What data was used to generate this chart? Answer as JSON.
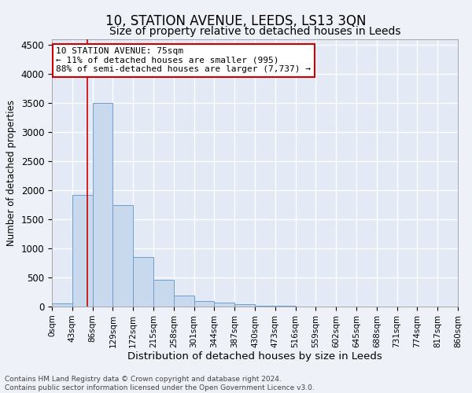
{
  "title": "10, STATION AVENUE, LEEDS, LS13 3QN",
  "subtitle": "Size of property relative to detached houses in Leeds",
  "xlabel": "Distribution of detached houses by size in Leeds",
  "ylabel": "Number of detached properties",
  "footer_line1": "Contains HM Land Registry data © Crown copyright and database right 2024.",
  "footer_line2": "Contains public sector information licensed under the Open Government Licence v3.0.",
  "annotation_line1": "10 STATION AVENUE: 75sqm",
  "annotation_line2": "← 11% of detached houses are smaller (995)",
  "annotation_line3": "88% of semi-detached houses are larger (7,737) →",
  "bar_color": "#c8d9ee",
  "bar_edge_color": "#6b9ecf",
  "red_line_x": 75,
  "annotation_box_color": "#ffffff",
  "annotation_box_edge_color": "#cc0000",
  "bins": [
    0,
    43,
    86,
    129,
    172,
    215,
    258,
    301,
    344,
    387,
    430,
    473,
    516,
    559,
    602,
    645,
    688,
    731,
    774,
    817,
    860
  ],
  "bin_labels": [
    "0sqm",
    "43sqm",
    "86sqm",
    "129sqm",
    "172sqm",
    "215sqm",
    "258sqm",
    "301sqm",
    "344sqm",
    "387sqm",
    "430sqm",
    "473sqm",
    "516sqm",
    "559sqm",
    "602sqm",
    "645sqm",
    "688sqm",
    "731sqm",
    "774sqm",
    "817sqm",
    "860sqm"
  ],
  "counts": [
    50,
    1920,
    3500,
    1750,
    850,
    460,
    185,
    95,
    70,
    45,
    20,
    10,
    5,
    3,
    2,
    1,
    1,
    0,
    0,
    0
  ],
  "ylim": [
    0,
    4600
  ],
  "yticks": [
    0,
    500,
    1000,
    1500,
    2000,
    2500,
    3000,
    3500,
    4000,
    4500
  ],
  "background_color": "#eef1f7",
  "plot_background": "#e4eaf5",
  "grid_color": "#ffffff",
  "title_fontsize": 12,
  "subtitle_fontsize": 10,
  "ylabel_fontsize": 8.5,
  "xlabel_fontsize": 9.5,
  "ann_fontsize": 8.0,
  "tick_fontsize": 7.5,
  "ytick_fontsize": 8.5,
  "footer_fontsize": 6.5
}
